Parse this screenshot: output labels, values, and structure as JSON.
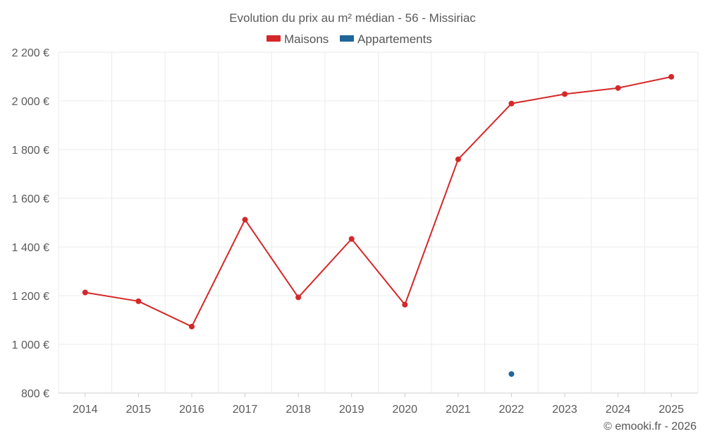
{
  "chart_data": {
    "type": "line",
    "title": "Evolution du prix au m² médian - 56 - Missiriac",
    "categories": [
      "2014",
      "2015",
      "2016",
      "2017",
      "2018",
      "2019",
      "2020",
      "2021",
      "2022",
      "2023",
      "2024",
      "2025"
    ],
    "series": [
      {
        "name": "Maisons",
        "color": "#d62728",
        "values": [
          1213,
          1177,
          1073,
          1512,
          1193,
          1433,
          1163,
          1760,
          1989,
          2028,
          2053,
          2099
        ]
      },
      {
        "name": "Appartements",
        "color": "#1f6699",
        "values": [
          null,
          null,
          null,
          null,
          null,
          null,
          null,
          null,
          878,
          null,
          null,
          null
        ]
      }
    ],
    "y_ticks": [
      "800 €",
      "1 000 €",
      "1 200 €",
      "1 400 €",
      "1 600 €",
      "1 800 €",
      "2 000 €",
      "2 200 €"
    ],
    "ylim": [
      800,
      2200
    ],
    "y_step": 200,
    "grid": true,
    "legend_position": "top-center"
  },
  "credit": "© emooki.fr - 2026"
}
